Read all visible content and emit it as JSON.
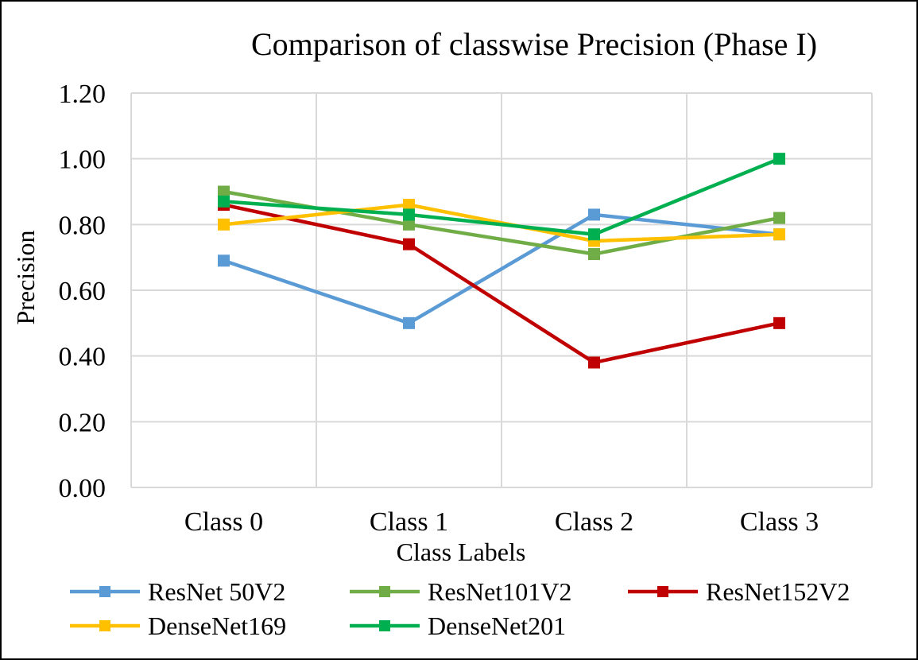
{
  "chart_data": {
    "type": "line",
    "title": "Comparison of classwise Precision (Phase I)",
    "xlabel": "Class Labels",
    "ylabel": "Precision",
    "categories": [
      "Class 0",
      "Class 1",
      "Class 2",
      "Class 3"
    ],
    "ylim": [
      0,
      1.2
    ],
    "yticks": [
      "0.00",
      "0.20",
      "0.40",
      "0.60",
      "0.80",
      "1.00",
      "1.20"
    ],
    "grid": true,
    "legend_position": "bottom",
    "marker": "square",
    "series": [
      {
        "name": "ResNet 50V2",
        "color": "#5b9bd5",
        "values": [
          0.69,
          0.5,
          0.83,
          0.77
        ]
      },
      {
        "name": "ResNet101V2",
        "color": "#70ad47",
        "values": [
          0.9,
          0.8,
          0.71,
          0.82
        ]
      },
      {
        "name": "ResNet152V2",
        "color": "#c00000",
        "values": [
          0.86,
          0.74,
          0.38,
          0.5
        ]
      },
      {
        "name": "DenseNet169",
        "color": "#ffc000",
        "values": [
          0.8,
          0.86,
          0.75,
          0.77
        ]
      },
      {
        "name": "DenseNet201",
        "color": "#00b050",
        "values": [
          0.87,
          0.83,
          0.77,
          1.0
        ]
      }
    ]
  }
}
